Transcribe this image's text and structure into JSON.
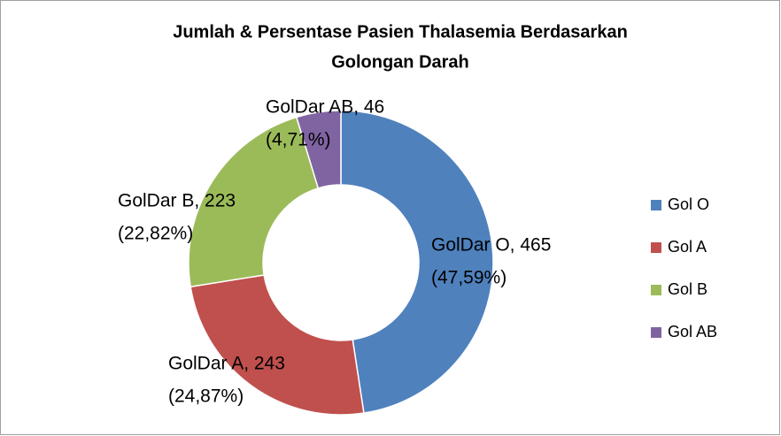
{
  "chart_data": {
    "type": "donut",
    "title": [
      "Jumlah & Persentase Pasien Thalasemia Berdasarkan",
      "Golongan Darah"
    ],
    "categories": [
      "Gol O",
      "Gol A",
      "Gol B",
      "Gol AB"
    ],
    "values": [
      465,
      243,
      223,
      46
    ],
    "value_labels": [
      "GolDar O, 465",
      "GolDar A, 243",
      "GolDar B, 223",
      "GolDar AB, 46"
    ],
    "percents": [
      47.59,
      24.87,
      22.82,
      4.71
    ],
    "percent_labels": [
      "(47,59%)",
      "(24,87%)",
      "(22,82%)",
      "(4,71%)"
    ],
    "colors": [
      "#4f81bd",
      "#c0504d",
      "#9bbb59",
      "#8064a2"
    ],
    "legend": "right"
  }
}
